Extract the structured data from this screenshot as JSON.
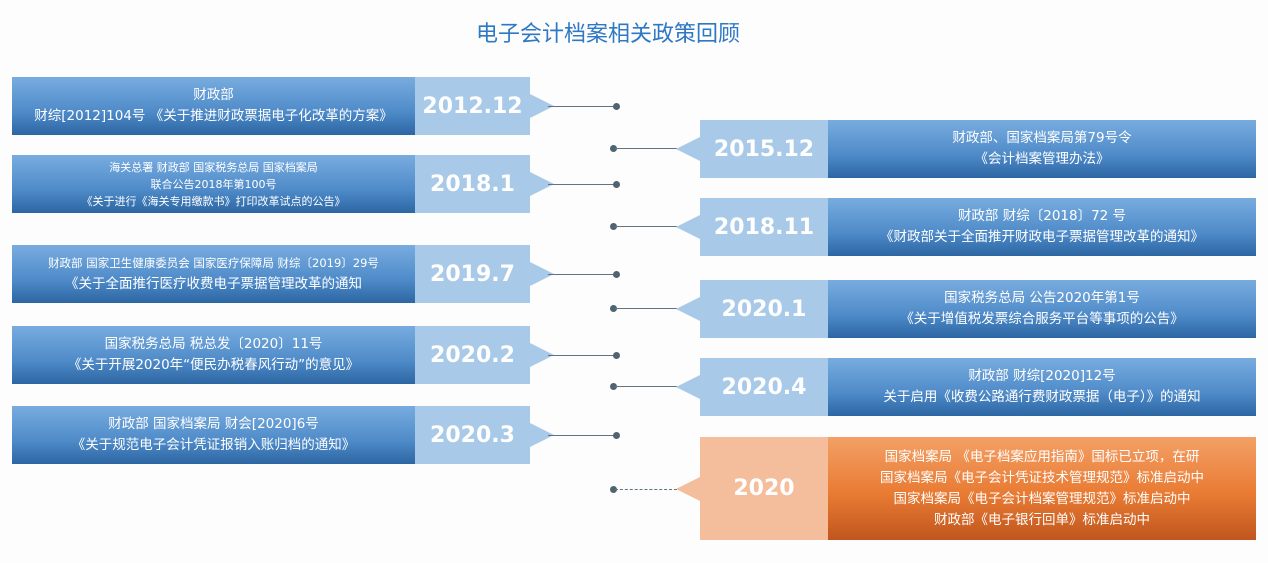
{
  "title": "电子会计档案相关政策回顾",
  "left_items": [
    {
      "date": "2012.12",
      "lines": [
        "财政部",
        "财综[2012]104号 《关于推进财政票据电子化改革的方案》"
      ]
    },
    {
      "date": "2018.1",
      "lines": [
        "海关总署 财政部 国家税务总局 国家档案局",
        "联合公告2018年第100号",
        "《关于进行《海关专用缴款书》打印改革试点的公告》"
      ]
    },
    {
      "date": "2019.7",
      "lines": [
        "财政部 国家卫生健康委员会 国家医疗保障局 财综〔2019〕29号",
        "《关于全面推行医疗收费电子票据管理改革的通知"
      ]
    },
    {
      "date": "2020.2",
      "lines": [
        "国家税务总局  税总发〔2020〕11号",
        "《关于开展2020年“便民办税春风行动”的意见》"
      ]
    },
    {
      "date": "2020.3",
      "lines": [
        "财政部 国家档案局 财会[2020]6号",
        "《关于规范电子会计凭证报销入账归档的通知》"
      ]
    }
  ],
  "right_items": [
    {
      "date": "2015.12",
      "lines": [
        "财政部、国家档案局第79号令",
        "《会计档案管理办法》"
      ]
    },
    {
      "date": "2018.11",
      "lines": [
        "财政部  财综〔2018〕72 号",
        "《财政部关于全面推开财政电子票据管理改革的通知》"
      ]
    },
    {
      "date": "2020.1",
      "lines": [
        "国家税务总局  公告2020年第1号",
        "《关于增值税发票综合服务平台等事项的公告》"
      ]
    },
    {
      "date": "2020.4",
      "lines": [
        "财政部 财综[2020]12号",
        "关于启用《收费公路通行费财政票据（电子）》的通知"
      ]
    },
    {
      "date": "2020",
      "lines": [
        "国家档案局 《电子档案应用指南》国标已立项，在研",
        "国家档案局《电子会计凭证技术管理规范》标准启动中",
        "国家档案局《电子会计档案管理规范》标准启动中",
        "财政部《电子银行回单》标准启动中"
      ]
    }
  ],
  "colors": {
    "title": "#2f78c4",
    "blue_dark": "#2c66a3",
    "blue_light": "#a8c9e8",
    "orange": "#e97b33",
    "orange_light": "#f4bd9b"
  }
}
